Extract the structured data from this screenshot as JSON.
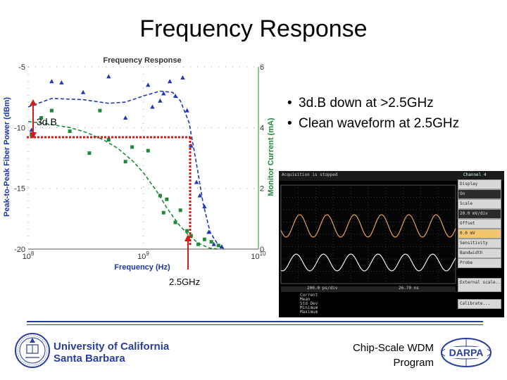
{
  "slide": {
    "title": "Frequency Response",
    "bullets": [
      "3d.B down at >2.5GHz",
      "Clean waveform at 2.5GHz"
    ]
  },
  "annotations": {
    "db_label": "3d.B",
    "freq_label": "2.5GHz"
  },
  "chart_data": {
    "type": "scatter",
    "title": "Frequency Response",
    "xlabel": "Frequency (Hz)",
    "ylabel": "Peak-to-Peak Fiber Power (dBm)",
    "y2label": "Monitor Current (mA)",
    "xscale": "log",
    "xlim": [
      100000000,
      10000000000
    ],
    "ylim": [
      -20,
      -5
    ],
    "y2lim": [
      0,
      6
    ],
    "xticks": [
      "10^8",
      "10^9",
      "10^10"
    ],
    "yticks": [
      "-5",
      "-10",
      "-15",
      "-20"
    ],
    "y2ticks": [
      "6",
      "4",
      "2",
      "0"
    ],
    "grid": "dotted",
    "series": [
      {
        "marker": "triangle",
        "color": "#2238b4",
        "points": [
          [
            107000000,
            -10.2
          ],
          [
            160000000,
            -6.2
          ],
          [
            195000000,
            -6.3
          ],
          [
            300000000,
            -7.1
          ],
          [
            500000000,
            -5.8
          ],
          [
            700000000,
            -9.2
          ],
          [
            1100000000,
            -6.5
          ],
          [
            1200000000,
            -8.3
          ],
          [
            1400000000,
            -7.8
          ],
          [
            1500000000,
            -7.2
          ],
          [
            1700000000,
            -6.2
          ],
          [
            1900000000,
            -7.4
          ],
          [
            2200000000,
            -5.9
          ],
          [
            2400000000,
            -8.6
          ],
          [
            2600000000,
            -11.5
          ],
          [
            2900000000,
            -14.5
          ],
          [
            3100000000,
            -15.6
          ],
          [
            3400000000,
            -16.5
          ],
          [
            3700000000,
            -18.6
          ],
          [
            4100000000,
            -19.6
          ],
          [
            4800000000,
            -19.8
          ]
        ]
      },
      {
        "marker": "square",
        "color": "#1f8a3a",
        "points": [
          [
            107000000,
            -10.6
          ],
          [
            130000000,
            -9.2
          ],
          [
            160000000,
            -8.6
          ],
          [
            230000000,
            -10.3
          ],
          [
            340000000,
            -12.1
          ],
          [
            420000000,
            -8.6
          ],
          [
            500000000,
            -11.0
          ],
          [
            700000000,
            -12.8
          ],
          [
            800000000,
            -11.6
          ],
          [
            1100000000,
            -11.9
          ],
          [
            1400000000,
            -15.6
          ],
          [
            1500000000,
            -17.0
          ],
          [
            1600000000,
            -15.9
          ],
          [
            1900000000,
            -17.8
          ],
          [
            2100000000,
            -16.8
          ],
          [
            2400000000,
            -18.5
          ],
          [
            2600000000,
            -18.9
          ],
          [
            3000000000,
            -19.6
          ],
          [
            3400000000,
            -19.2
          ],
          [
            3900000000,
            -19.4
          ],
          [
            4500000000,
            -19.7
          ]
        ]
      }
    ],
    "fits": [
      {
        "color": "#2238b4",
        "points": [
          [
            100000000,
            -8.3
          ],
          [
            160000000,
            -7.6
          ],
          [
            300000000,
            -7.7
          ],
          [
            500000000,
            -8.0
          ],
          [
            700000000,
            -7.9
          ],
          [
            1000000000,
            -7.4
          ],
          [
            1400000000,
            -7.0
          ],
          [
            1800000000,
            -7.1
          ],
          [
            2100000000,
            -7.8
          ],
          [
            2500000000,
            -9.6
          ],
          [
            2900000000,
            -13.0
          ],
          [
            3300000000,
            -16.2
          ],
          [
            3800000000,
            -18.6
          ],
          [
            4500000000,
            -19.7
          ],
          [
            5000000000,
            -20.0
          ]
        ]
      },
      {
        "color": "#1f8a3a",
        "points": [
          [
            100000000,
            -9.5
          ],
          [
            150000000,
            -9.7
          ],
          [
            230000000,
            -10.0
          ],
          [
            320000000,
            -10.4
          ],
          [
            450000000,
            -11.0
          ],
          [
            600000000,
            -11.7
          ],
          [
            800000000,
            -12.7
          ],
          [
            1000000000,
            -13.7
          ],
          [
            1300000000,
            -15.2
          ],
          [
            1600000000,
            -16.6
          ],
          [
            2000000000,
            -17.9
          ],
          [
            2500000000,
            -18.9
          ],
          [
            3000000000,
            -19.5
          ],
          [
            3700000000,
            -19.9
          ],
          [
            4500000000,
            -20.0
          ]
        ]
      }
    ]
  },
  "scope": {
    "status": "Acquisition is stopped",
    "panel_title": "Channel 4",
    "buttons": [
      "Display",
      "On",
      "Scale",
      "20.0 mV/div",
      "Offset",
      "0.0 mV",
      "Sensitivity",
      "Bandwidth",
      "Probe",
      "External scale...",
      "Calibrate..."
    ],
    "time_readout": "200.0 ps/div",
    "delay_readout": "26.70 ns",
    "measurements": [
      "Current",
      "Mean",
      "Std Dev",
      "Minimum",
      "Maximum"
    ]
  },
  "footer": {
    "university": [
      "University of California",
      "Santa Barbara"
    ],
    "program": [
      "Chip-Scale WDM",
      "Program"
    ],
    "logo_text": "DARPA"
  },
  "colors": {
    "axis_label": "#1a35a8",
    "right_axis": "#1f8a3a",
    "marker_red": "#d31a1a",
    "footer_rule": "#2b3f87",
    "scope_wave": "#e8a25a"
  }
}
